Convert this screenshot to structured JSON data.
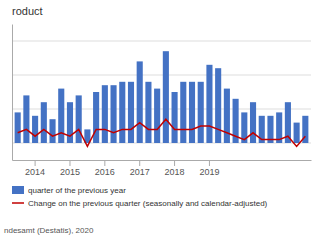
{
  "chart_data": {
    "type": "bar",
    "title": "roduct",
    "categories": [
      null,
      null,
      "2014",
      null,
      null,
      null,
      "2015",
      null,
      null,
      null,
      "2016",
      null,
      null,
      null,
      "2017",
      null,
      null,
      null,
      "2018",
      null,
      null,
      null,
      "2019",
      null,
      null,
      null,
      null,
      null,
      null,
      null,
      null,
      null,
      null,
      null
    ],
    "series": [
      {
        "name": "quarter of the previous year",
        "type": "bar",
        "color": "#4472C4",
        "values": [
          0.9,
          1.4,
          0.8,
          1.2,
          0.7,
          1.6,
          1.2,
          1.4,
          0.4,
          1.5,
          1.7,
          1.7,
          1.8,
          1.8,
          2.4,
          1.8,
          1.6,
          2.7,
          1.5,
          1.8,
          1.8,
          1.8,
          2.3,
          2.2,
          1.6,
          1.3,
          0.9,
          1.2,
          0.8,
          0.8,
          0.9,
          1.2,
          0.6,
          0.8
        ]
      },
      {
        "name": "Change on the previous quarter (seasonally and calendar-adjusted)",
        "type": "line",
        "color": "#C00000",
        "values": [
          0.3,
          0.4,
          0.2,
          0.4,
          0.2,
          0.3,
          0.2,
          0.4,
          -0.1,
          0.4,
          0.4,
          0.3,
          0.4,
          0.4,
          0.6,
          0.4,
          0.4,
          0.7,
          0.4,
          0.4,
          0.4,
          0.5,
          0.5,
          0.4,
          0.3,
          0.2,
          0.1,
          0.3,
          0.1,
          0.1,
          0.1,
          0.2,
          -0.1,
          0.2
        ]
      }
    ],
    "ylim": [
      -0.5,
      3.5
    ],
    "yticks": [
      0,
      1,
      2,
      3
    ],
    "grid": true,
    "tick_labels": "x",
    "legend": "bottom",
    "annotations": [
      "ndesamt (Destatis), 2020"
    ]
  }
}
